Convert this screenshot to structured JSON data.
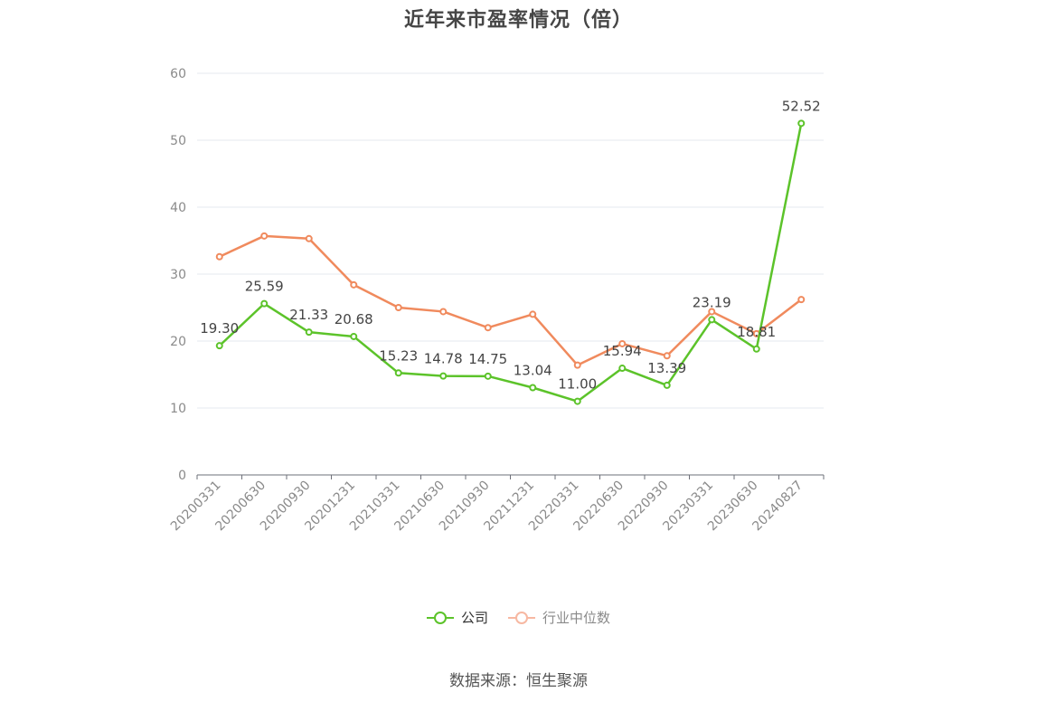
{
  "title": "近年来市盈率情况（倍）",
  "source": "数据来源：恒生聚源",
  "legend": {
    "company": "公司",
    "industry": "行业中位数"
  },
  "colors": {
    "company": "#5cc32a",
    "industry": "#f08a5d",
    "industry_legend": "#f7b8a2",
    "grid": "#e6e8ef",
    "axis": "#6e7079",
    "label": "#444444"
  },
  "chart_data": {
    "type": "line",
    "categories": [
      "20200331",
      "20200630",
      "20200930",
      "20201231",
      "20210331",
      "20210630",
      "20210930",
      "20211231",
      "20220331",
      "20220630",
      "20220930",
      "20230331",
      "20230630",
      "20240827"
    ],
    "series": [
      {
        "name": "公司",
        "values": [
          19.3,
          25.59,
          21.33,
          20.68,
          15.23,
          14.78,
          14.75,
          13.04,
          11.0,
          15.94,
          13.39,
          23.19,
          18.81,
          52.52
        ],
        "labels": [
          "19.30",
          "25.59",
          "21.33",
          "20.68",
          "15.23",
          "14.78",
          "14.75",
          "13.04",
          "11.00",
          "15.94",
          "13.39",
          "23.19",
          "18.81",
          "52.52"
        ]
      },
      {
        "name": "行业中位数",
        "values": [
          32.6,
          35.7,
          35.3,
          28.4,
          25.0,
          24.4,
          22.0,
          24.0,
          16.4,
          19.6,
          17.8,
          24.4,
          21.1,
          26.2
        ]
      }
    ],
    "ylim": [
      0,
      60
    ],
    "yticks": [
      "0",
      "10",
      "20",
      "30",
      "40",
      "50",
      "60"
    ],
    "grid": true,
    "legend_position": "bottom"
  }
}
